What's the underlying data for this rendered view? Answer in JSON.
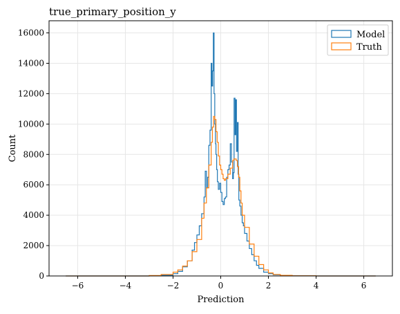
{
  "chart_data": {
    "type": "line",
    "title": "true_primary_position_y",
    "xlabel": "Prediction",
    "ylabel": "Count",
    "xlim": [
      -7.2,
      7.2
    ],
    "ylim": [
      0,
      16800
    ],
    "x_ticks": [
      -6,
      -4,
      -2,
      0,
      2,
      4,
      6
    ],
    "x_tick_labels": [
      "−6",
      "−4",
      "−2",
      "0",
      "2",
      "4",
      "6"
    ],
    "y_ticks": [
      0,
      2000,
      4000,
      6000,
      8000,
      10000,
      12000,
      14000,
      16000
    ],
    "y_tick_labels": [
      "0",
      "2000",
      "4000",
      "6000",
      "8000",
      "10000",
      "12000",
      "14000",
      "16000"
    ],
    "grid": true,
    "legend_position": "top-right",
    "series": [
      {
        "name": "Model",
        "color": "#1f77b4",
        "style": "step",
        "x": [
          -6.5,
          -3.0,
          -2.5,
          -2.0,
          -1.8,
          -1.6,
          -1.4,
          -1.2,
          -1.1,
          -1.0,
          -0.9,
          -0.8,
          -0.7,
          -0.65,
          -0.6,
          -0.55,
          -0.5,
          -0.45,
          -0.4,
          -0.37,
          -0.34,
          -0.31,
          -0.28,
          -0.25,
          -0.22,
          -0.2,
          -0.17,
          -0.14,
          -0.1,
          -0.05,
          0.0,
          0.05,
          0.1,
          0.15,
          0.2,
          0.25,
          0.3,
          0.35,
          0.4,
          0.45,
          0.5,
          0.53,
          0.56,
          0.6,
          0.63,
          0.66,
          0.7,
          0.73,
          0.76,
          0.8,
          0.85,
          0.9,
          0.95,
          1.0,
          1.1,
          1.2,
          1.3,
          1.4,
          1.5,
          1.6,
          1.8,
          2.0,
          2.2,
          2.5,
          3.0,
          4.0,
          6.5
        ],
        "y": [
          0,
          10,
          40,
          150,
          300,
          600,
          1000,
          1700,
          2200,
          2700,
          3300,
          4100,
          5200,
          6900,
          5800,
          6500,
          8600,
          9600,
          14000,
          12500,
          13500,
          16000,
          12000,
          10000,
          8700,
          8000,
          7000,
          6200,
          5700,
          6100,
          5500,
          4900,
          4700,
          5100,
          5200,
          6500,
          7000,
          7300,
          8700,
          7500,
          6400,
          6800,
          11700,
          9300,
          11600,
          8200,
          10100,
          6700,
          5000,
          4600,
          4000,
          3500,
          3300,
          2800,
          2300,
          1800,
          1400,
          1000,
          700,
          500,
          250,
          150,
          80,
          30,
          10,
          0,
          0
        ]
      },
      {
        "name": "Truth",
        "color": "#ff7f0e",
        "style": "step",
        "x": [
          -6.5,
          -3.0,
          -2.5,
          -2.0,
          -1.8,
          -1.6,
          -1.4,
          -1.2,
          -1.0,
          -0.8,
          -0.7,
          -0.6,
          -0.5,
          -0.4,
          -0.35,
          -0.3,
          -0.25,
          -0.2,
          -0.15,
          -0.1,
          -0.05,
          0.0,
          0.05,
          0.1,
          0.15,
          0.2,
          0.3,
          0.4,
          0.5,
          0.55,
          0.6,
          0.65,
          0.7,
          0.75,
          0.8,
          0.85,
          0.9,
          1.0,
          1.2,
          1.4,
          1.6,
          1.8,
          2.0,
          2.2,
          2.5,
          3.0,
          4.0,
          6.5
        ],
        "y": [
          0,
          30,
          100,
          250,
          400,
          650,
          1000,
          1600,
          2400,
          3800,
          4800,
          5800,
          7300,
          8800,
          9800,
          10500,
          10300,
          9500,
          8800,
          7900,
          7300,
          7000,
          6700,
          6400,
          6300,
          6400,
          6700,
          7100,
          7600,
          7700,
          7700,
          7600,
          7200,
          6500,
          5600,
          4800,
          4000,
          3200,
          2100,
          1300,
          750,
          400,
          200,
          100,
          40,
          15,
          0,
          0
        ]
      }
    ]
  }
}
